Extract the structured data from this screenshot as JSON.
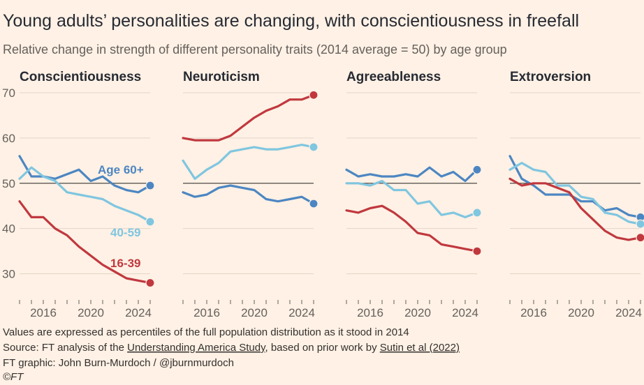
{
  "title": "Young adults’ personalities are changing, with conscientiousness in freefall",
  "subtitle": "Relative change in strength of different personality traits (2014 average = 50) by age group",
  "colors": {
    "age60": "#4c86c2",
    "age4059": "#7fc6e0",
    "age1639": "#c0383e",
    "reference": "#4d4845",
    "grid": "#e3d6c9",
    "background": "#fff1e5"
  },
  "chart_data": [
    {
      "type": "line",
      "title": "Conscientiousness",
      "x": [
        2014,
        2015,
        2016,
        2017,
        2018,
        2019,
        2020,
        2021,
        2022,
        2023,
        2024,
        2025
      ],
      "series": [
        {
          "name": "Age 60+",
          "values": [
            56,
            51.5,
            51.5,
            51,
            52,
            53,
            50.5,
            51.5,
            49.5,
            48.5,
            48,
            49.5
          ]
        },
        {
          "name": "40-59",
          "values": [
            51,
            53.5,
            51.5,
            50.5,
            48,
            47.5,
            47,
            46.5,
            45,
            44,
            43,
            41.5
          ]
        },
        {
          "name": "16-39",
          "values": [
            46,
            42.5,
            42.5,
            40,
            38.5,
            36,
            34,
            32,
            30.5,
            29,
            28.5,
            28
          ]
        }
      ],
      "series_labels": [
        "Age 60+",
        "40-59",
        "16-39"
      ],
      "xticks": [
        "2016",
        "2020",
        "2024"
      ],
      "yticks": [
        "30",
        "40",
        "50",
        "60",
        "70"
      ],
      "ylim": [
        25,
        72
      ],
      "reference_line": 50
    },
    {
      "type": "line",
      "title": "Neuroticism",
      "x": [
        2014,
        2015,
        2016,
        2017,
        2018,
        2019,
        2020,
        2021,
        2022,
        2023,
        2024,
        2025
      ],
      "series": [
        {
          "name": "Age 60+",
          "values": [
            48,
            47,
            47.5,
            49,
            49.5,
            49,
            48.5,
            46.5,
            46,
            46.5,
            47,
            45.5
          ]
        },
        {
          "name": "40-59",
          "values": [
            55,
            51,
            53,
            54.5,
            57,
            57.5,
            58,
            57.5,
            57.5,
            58,
            58.5,
            58
          ]
        },
        {
          "name": "16-39",
          "values": [
            60,
            59.5,
            59.5,
            59.5,
            60.5,
            62.5,
            64.5,
            66,
            67,
            68.5,
            68.5,
            69.5
          ]
        }
      ],
      "xticks": [
        "2016",
        "2020",
        "2024"
      ],
      "ylim": [
        25,
        72
      ],
      "reference_line": 50
    },
    {
      "type": "line",
      "title": "Agreeableness",
      "x": [
        2014,
        2015,
        2016,
        2017,
        2018,
        2019,
        2020,
        2021,
        2022,
        2023,
        2024,
        2025
      ],
      "series": [
        {
          "name": "Age 60+",
          "values": [
            53,
            51.5,
            52,
            51.5,
            51.5,
            52,
            51.5,
            53.5,
            51.5,
            52.5,
            50.5,
            53
          ]
        },
        {
          "name": "40-59",
          "values": [
            50,
            50,
            49.5,
            50.5,
            48.5,
            48.5,
            45.5,
            46,
            43,
            43.5,
            42.5,
            43.5
          ]
        },
        {
          "name": "16-39",
          "values": [
            44,
            43.5,
            44.5,
            45,
            43.5,
            41.5,
            39,
            38.5,
            36.5,
            36,
            35.5,
            35
          ]
        }
      ],
      "xticks": [
        "2016",
        "2020",
        "2024"
      ],
      "ylim": [
        25,
        72
      ],
      "reference_line": 50
    },
    {
      "type": "line",
      "title": "Extroversion",
      "x": [
        2014,
        2015,
        2016,
        2017,
        2018,
        2019,
        2020,
        2021,
        2022,
        2023,
        2024,
        2025
      ],
      "series": [
        {
          "name": "Age 60+",
          "values": [
            56,
            51,
            49.5,
            47.5,
            47.5,
            47.5,
            46,
            46,
            44,
            44.5,
            43,
            42.5
          ]
        },
        {
          "name": "40-59",
          "values": [
            53,
            54.5,
            53,
            52.5,
            49.5,
            49.5,
            47,
            46.5,
            43.5,
            43,
            41.5,
            41
          ]
        },
        {
          "name": "16-39",
          "values": [
            51,
            49.5,
            50,
            50,
            49,
            48,
            44.5,
            42,
            39.5,
            38,
            37.5,
            38
          ]
        }
      ],
      "xticks": [
        "2016",
        "2020",
        "2024"
      ],
      "ylim": [
        25,
        72
      ],
      "reference_line": 50
    }
  ],
  "footnotes": {
    "line1": "Values are expressed as percentiles of the full population distribution as it stood in 2014",
    "source_prefix": "Source: FT analysis of the ",
    "source_link1": "Understanding America Study",
    "source_mid": ", based on prior work by ",
    "source_link2": "Sutin et al (2022)",
    "graphic": "FT graphic: John Burn-Murdoch / @jburnmurdoch",
    "copyright": "©FT"
  }
}
